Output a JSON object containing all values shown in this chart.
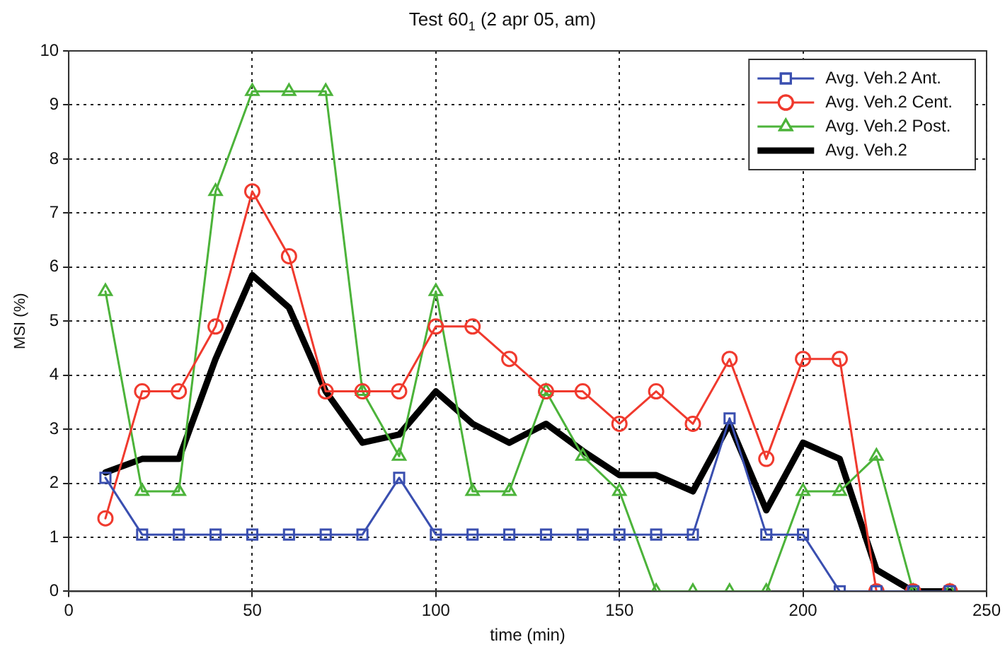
{
  "chart_data": {
    "type": "line",
    "title": "Test  60$_{1}$ (2 apr 05, am)",
    "xlabel": "time (min)",
    "ylabel": "MSI (%)",
    "x": [
      10,
      20,
      30,
      40,
      50,
      60,
      70,
      80,
      90,
      100,
      110,
      120,
      130,
      140,
      150,
      160,
      170,
      180,
      190,
      200,
      210,
      220,
      230,
      240
    ],
    "xlim": [
      0,
      250
    ],
    "xticks": [
      0,
      50,
      100,
      150,
      200,
      250
    ],
    "ylim": [
      0,
      10
    ],
    "yticks": [
      0,
      1,
      2,
      3,
      4,
      5,
      6,
      7,
      8,
      9,
      10
    ],
    "grid": true,
    "legend": "top right",
    "line_style": "solid",
    "series": [
      {
        "name": "Avg. Veh.2 Ant.",
        "color": "#3a4fb0",
        "marker": "square",
        "values": [
          2.1,
          1.05,
          1.05,
          1.05,
          1.05,
          1.05,
          1.05,
          1.05,
          2.1,
          1.05,
          1.05,
          1.05,
          1.05,
          1.05,
          1.05,
          1.05,
          1.05,
          3.2,
          1.05,
          1.05,
          0,
          0,
          0,
          0
        ]
      },
      {
        "name": "Avg. Veh.2 Cent.",
        "color": "#f03a2e",
        "marker": "circle",
        "values": [
          1.35,
          3.7,
          3.7,
          4.9,
          7.4,
          6.2,
          3.7,
          3.7,
          3.7,
          4.9,
          4.9,
          4.3,
          3.7,
          3.7,
          3.1,
          3.7,
          3.1,
          4.3,
          2.45,
          4.3,
          4.3,
          0,
          0,
          0
        ]
      },
      {
        "name": "Avg. Veh.2 Post.",
        "color": "#4cb33a",
        "marker": "triangle",
        "values": [
          5.55,
          1.85,
          1.85,
          7.4,
          9.25,
          9.25,
          9.25,
          3.7,
          2.5,
          5.55,
          1.85,
          1.85,
          3.7,
          2.5,
          1.85,
          0,
          0,
          0,
          0,
          1.85,
          1.85,
          2.5,
          0,
          0
        ]
      },
      {
        "name": "Avg. Veh.2",
        "color": "#000000",
        "marker": "none",
        "values": [
          2.2,
          2.45,
          2.45,
          4.3,
          5.85,
          5.25,
          3.7,
          2.75,
          2.9,
          3.7,
          3.1,
          2.75,
          3.1,
          2.6,
          2.15,
          2.15,
          1.85,
          3.1,
          1.5,
          2.75,
          2.45,
          0.4,
          0,
          0
        ]
      }
    ]
  }
}
